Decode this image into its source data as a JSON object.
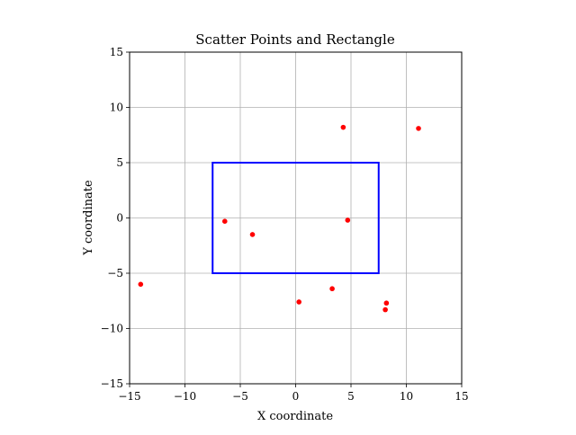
{
  "chart_data": {
    "type": "scatter",
    "title": "Scatter Points and Rectangle",
    "xlabel": "X coordinate",
    "ylabel": "Y coordinate",
    "xlim": [
      -15,
      15
    ],
    "ylim": [
      -15,
      15
    ],
    "xticks": [
      -15,
      -10,
      -5,
      0,
      5,
      10,
      15
    ],
    "yticks": [
      -15,
      -10,
      -5,
      0,
      5,
      10,
      15
    ],
    "grid": true,
    "points_color": "#ff0000",
    "rectangle_color": "#0000ff",
    "points": [
      {
        "x": -14.0,
        "y": -6.0
      },
      {
        "x": -6.4,
        "y": -0.3
      },
      {
        "x": -3.9,
        "y": -1.5
      },
      {
        "x": 0.3,
        "y": -7.6
      },
      {
        "x": 3.3,
        "y": -6.4
      },
      {
        "x": 4.3,
        "y": 8.2
      },
      {
        "x": 4.7,
        "y": -0.2
      },
      {
        "x": 8.1,
        "y": -8.3
      },
      {
        "x": 8.2,
        "y": -7.7
      },
      {
        "x": 11.1,
        "y": 8.1
      }
    ],
    "rectangle": {
      "x_min": -7.5,
      "x_max": 7.5,
      "y_min": -5,
      "y_max": 5
    }
  }
}
